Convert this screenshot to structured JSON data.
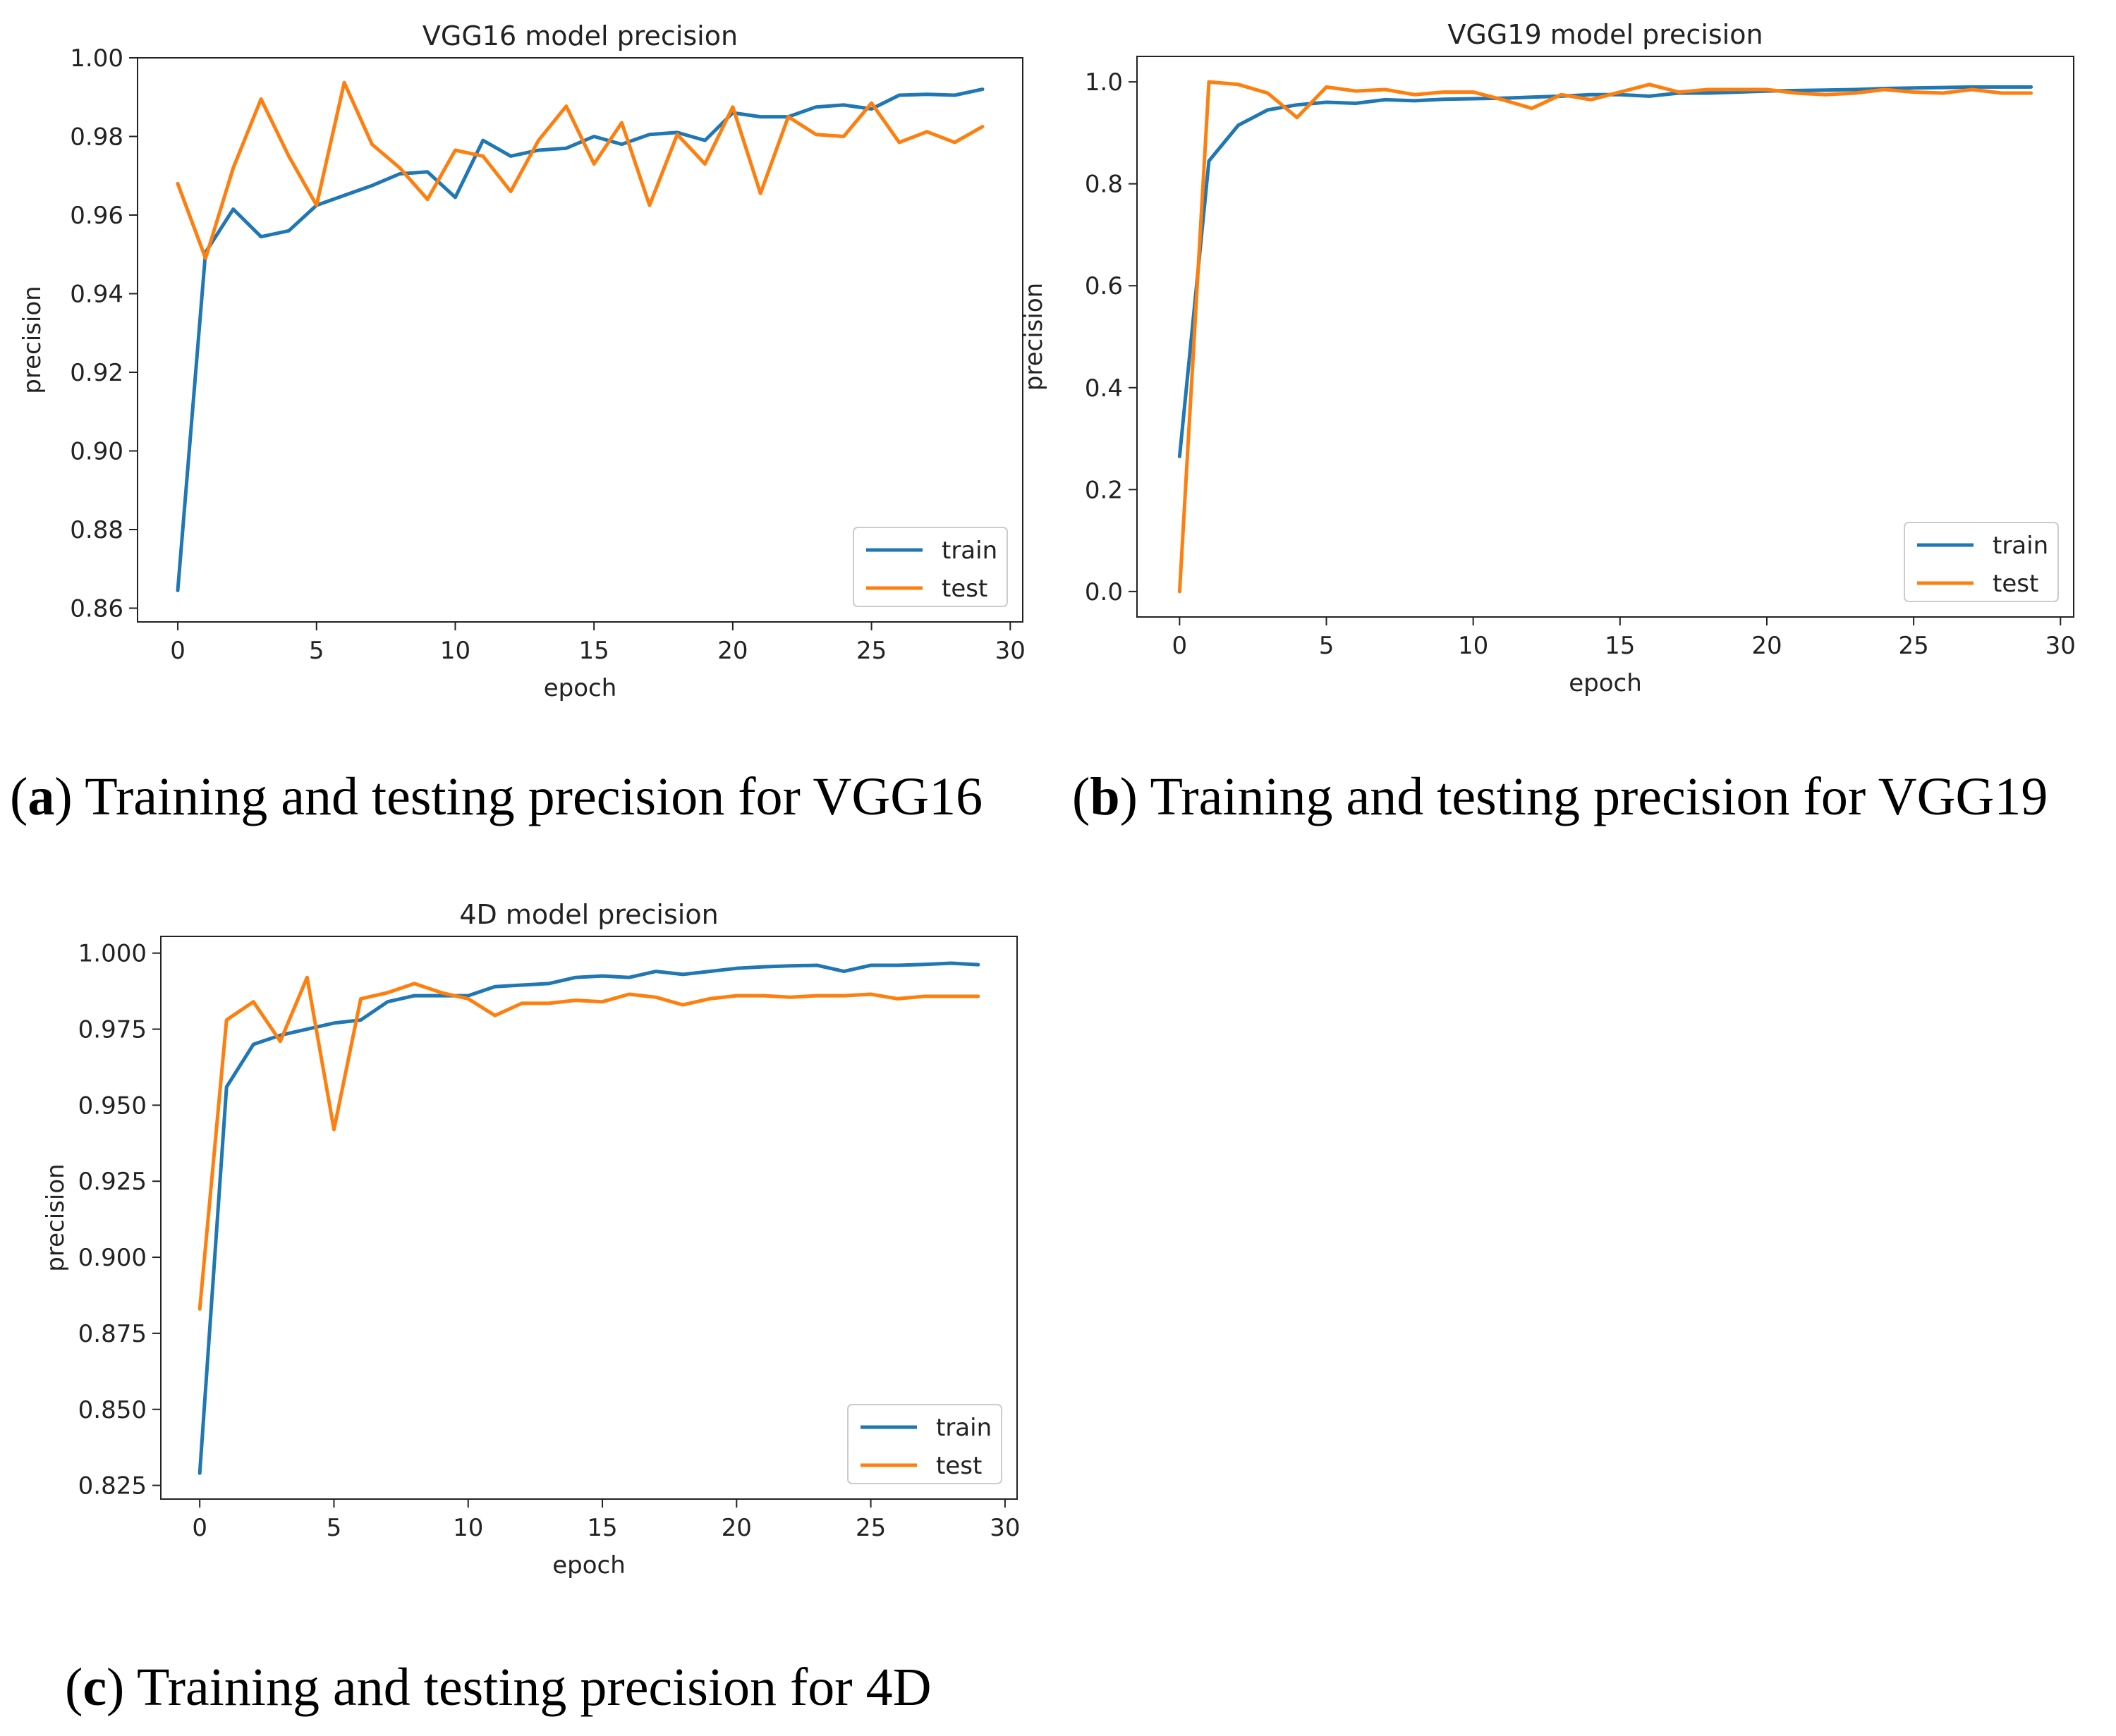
{
  "figure": {
    "captions": [
      {
        "letter": "a",
        "text": "Training and testing precision for VGG16"
      },
      {
        "letter": "b",
        "text": "Training and testing precision for VGG19"
      },
      {
        "letter": "c",
        "text": "Training and testing precision for 4D"
      }
    ]
  },
  "colors": {
    "train": "#1f77b4",
    "test": "#ff7f0e"
  },
  "chart_data": [
    {
      "type": "line",
      "title": "VGG16 model precision",
      "xlabel": "epoch",
      "ylabel": "precision",
      "xlim": [
        -1.45,
        30.45
      ],
      "ylim": [
        0.8565,
        1.0
      ],
      "xticks": [
        0,
        5,
        10,
        15,
        20,
        25,
        30
      ],
      "yticks": [
        0.86,
        0.88,
        0.9,
        0.92,
        0.94,
        0.96,
        0.98,
        1.0
      ],
      "ytick_labels": [
        "0.86",
        "0.88",
        "0.90",
        "0.92",
        "0.94",
        "0.96",
        "0.98",
        "1.00"
      ],
      "legend": "lower-right",
      "x": [
        0,
        1,
        2,
        3,
        4,
        5,
        6,
        7,
        8,
        9,
        10,
        11,
        12,
        13,
        14,
        15,
        16,
        17,
        18,
        19,
        20,
        21,
        22,
        23,
        24,
        25,
        26,
        27,
        28,
        29
      ],
      "series": [
        {
          "name": "train",
          "values": [
            0.8645,
            0.9505,
            0.9615,
            0.9545,
            0.956,
            0.9625,
            0.965,
            0.9675,
            0.9705,
            0.971,
            0.9645,
            0.979,
            0.975,
            0.9765,
            0.977,
            0.98,
            0.978,
            0.9805,
            0.981,
            0.979,
            0.986,
            0.985,
            0.985,
            0.9875,
            0.988,
            0.987,
            0.9905,
            0.9907,
            0.9905,
            0.992
          ]
        },
        {
          "name": "test",
          "values": [
            0.968,
            0.949,
            0.972,
            0.9895,
            0.975,
            0.9625,
            0.9937,
            0.978,
            0.972,
            0.964,
            0.9765,
            0.975,
            0.966,
            0.979,
            0.9877,
            0.973,
            0.9835,
            0.9625,
            0.9805,
            0.973,
            0.9875,
            0.9655,
            0.985,
            0.9805,
            0.98,
            0.9885,
            0.9785,
            0.9812,
            0.9785,
            0.9825
          ]
        }
      ]
    },
    {
      "type": "line",
      "title": "VGG19 model precision",
      "xlabel": "epoch",
      "ylabel": "precision",
      "xlim": [
        -1.45,
        30.45
      ],
      "ylim": [
        -0.05,
        1.05
      ],
      "xticks": [
        0,
        5,
        10,
        15,
        20,
        25,
        30
      ],
      "yticks": [
        0.0,
        0.2,
        0.4,
        0.6,
        0.8,
        1.0
      ],
      "ytick_labels": [
        "0.0",
        "0.2",
        "0.4",
        "0.6",
        "0.8",
        "1.0"
      ],
      "legend": "lower-right",
      "x": [
        0,
        1,
        2,
        3,
        4,
        5,
        6,
        7,
        8,
        9,
        10,
        11,
        12,
        13,
        14,
        15,
        16,
        17,
        18,
        19,
        20,
        21,
        22,
        23,
        24,
        25,
        26,
        27,
        28,
        29
      ],
      "series": [
        {
          "name": "train",
          "values": [
            0.265,
            0.845,
            0.915,
            0.945,
            0.955,
            0.96,
            0.958,
            0.965,
            0.963,
            0.966,
            0.967,
            0.968,
            0.97,
            0.972,
            0.975,
            0.975,
            0.972,
            0.978,
            0.978,
            0.98,
            0.982,
            0.983,
            0.984,
            0.985,
            0.987,
            0.988,
            0.989,
            0.99,
            0.99,
            0.99
          ]
        },
        {
          "name": "test",
          "values": [
            0.0,
            1.0,
            0.995,
            0.978,
            0.93,
            0.99,
            0.982,
            0.985,
            0.975,
            0.98,
            0.98,
            0.965,
            0.948,
            0.975,
            0.965,
            0.98,
            0.995,
            0.98,
            0.985,
            0.985,
            0.985,
            0.978,
            0.975,
            0.978,
            0.985,
            0.98,
            0.978,
            0.985,
            0.978,
            0.978
          ]
        }
      ]
    },
    {
      "type": "line",
      "title": "4D model precision",
      "xlabel": "epoch",
      "ylabel": "precision",
      "xlim": [
        -1.45,
        30.45
      ],
      "ylim": [
        0.8205,
        1.0055
      ],
      "xticks": [
        0,
        5,
        10,
        15,
        20,
        25,
        30
      ],
      "yticks": [
        0.825,
        0.85,
        0.875,
        0.9,
        0.925,
        0.95,
        0.975,
        1.0
      ],
      "ytick_labels": [
        "0.825",
        "0.850",
        "0.875",
        "0.900",
        "0.925",
        "0.950",
        "0.975",
        "1.000"
      ],
      "legend": "lower-right",
      "x": [
        0,
        1,
        2,
        3,
        4,
        5,
        6,
        7,
        8,
        9,
        10,
        11,
        12,
        13,
        14,
        15,
        16,
        17,
        18,
        19,
        20,
        21,
        22,
        23,
        24,
        25,
        26,
        27,
        28,
        29
      ],
      "series": [
        {
          "name": "train",
          "values": [
            0.829,
            0.956,
            0.97,
            0.973,
            0.975,
            0.977,
            0.978,
            0.984,
            0.986,
            0.986,
            0.986,
            0.989,
            0.9895,
            0.99,
            0.992,
            0.9925,
            0.992,
            0.994,
            0.993,
            0.994,
            0.995,
            0.9955,
            0.9958,
            0.996,
            0.994,
            0.996,
            0.996,
            0.9963,
            0.9967,
            0.9962
          ]
        },
        {
          "name": "test",
          "values": [
            0.883,
            0.978,
            0.984,
            0.971,
            0.992,
            0.942,
            0.985,
            0.987,
            0.99,
            0.987,
            0.985,
            0.9795,
            0.9835,
            0.9835,
            0.9845,
            0.984,
            0.9865,
            0.9855,
            0.983,
            0.985,
            0.986,
            0.986,
            0.9855,
            0.986,
            0.986,
            0.9865,
            0.985,
            0.9858,
            0.9858,
            0.9858
          ]
        }
      ]
    }
  ]
}
